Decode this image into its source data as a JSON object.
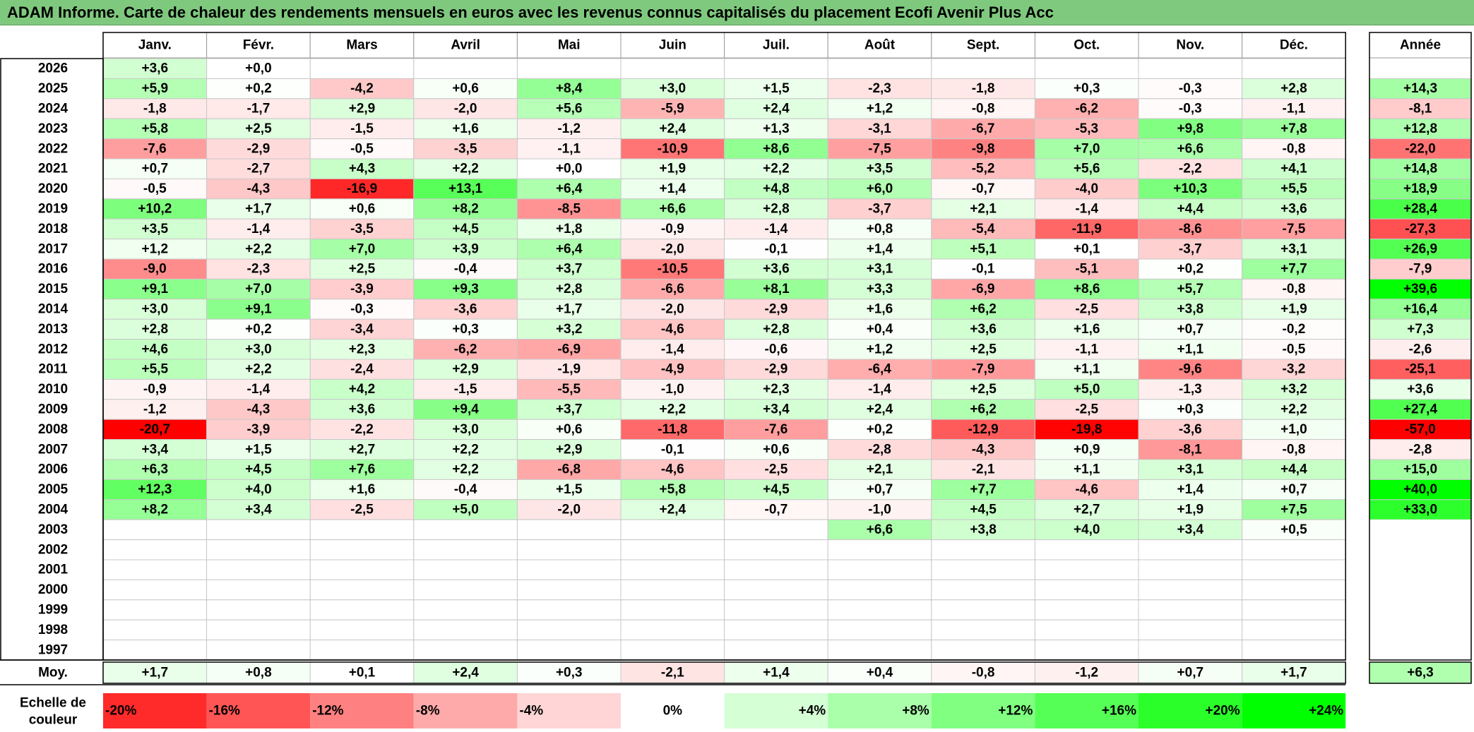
{
  "title": "ADAM Informe. Carte de chaleur des rendements mensuels en euros avec les revenus connus capitalisés du placement Ecofi Avenir Plus Acc",
  "chart_data": {
    "type": "heatmap",
    "months": [
      "Janv.",
      "Févr.",
      "Mars",
      "Avril",
      "Mai",
      "Juin",
      "Juil.",
      "Août",
      "Sept.",
      "Oct.",
      "Nov.",
      "Déc."
    ],
    "year_header": "Année",
    "rows": [
      {
        "year": "2026",
        "values": [
          3.6,
          0.0,
          null,
          null,
          null,
          null,
          null,
          null,
          null,
          null,
          null,
          null
        ],
        "annual": null
      },
      {
        "year": "2025",
        "values": [
          5.9,
          0.2,
          -4.2,
          0.6,
          8.4,
          3.0,
          1.5,
          -2.3,
          -1.8,
          0.3,
          -0.3,
          2.8
        ],
        "annual": 14.3
      },
      {
        "year": "2024",
        "values": [
          -1.8,
          -1.7,
          2.9,
          -2.0,
          5.6,
          -5.9,
          2.4,
          1.2,
          -0.8,
          -6.2,
          -0.3,
          -1.1
        ],
        "annual": -8.1
      },
      {
        "year": "2023",
        "values": [
          5.8,
          2.5,
          -1.5,
          1.6,
          -1.2,
          2.4,
          1.3,
          -3.1,
          -6.7,
          -5.3,
          9.8,
          7.8
        ],
        "annual": 12.8
      },
      {
        "year": "2022",
        "values": [
          -7.6,
          -2.9,
          -0.5,
          -3.5,
          -1.1,
          -10.9,
          8.6,
          -7.5,
          -9.8,
          7.0,
          6.6,
          -0.8
        ],
        "annual": -22.0
      },
      {
        "year": "2021",
        "values": [
          0.7,
          -2.7,
          4.3,
          2.2,
          0.0,
          1.9,
          2.2,
          3.5,
          -5.2,
          5.6,
          -2.2,
          4.1
        ],
        "annual": 14.8
      },
      {
        "year": "2020",
        "values": [
          -0.5,
          -4.3,
          -16.9,
          13.1,
          6.4,
          1.4,
          4.8,
          6.0,
          -0.7,
          -4.0,
          10.3,
          5.5
        ],
        "annual": 18.9
      },
      {
        "year": "2019",
        "values": [
          10.2,
          1.7,
          0.6,
          8.2,
          -8.5,
          6.6,
          2.8,
          -3.7,
          2.1,
          -1.4,
          4.4,
          3.6
        ],
        "annual": 28.4
      },
      {
        "year": "2018",
        "values": [
          3.5,
          -1.4,
          -3.5,
          4.5,
          1.8,
          -0.9,
          -1.4,
          0.8,
          -5.4,
          -11.9,
          -8.6,
          -7.5
        ],
        "annual": -27.3
      },
      {
        "year": "2017",
        "values": [
          1.2,
          2.2,
          7.0,
          3.9,
          6.4,
          -2.0,
          -0.1,
          1.4,
          5.1,
          0.1,
          -3.7,
          3.1
        ],
        "annual": 26.9
      },
      {
        "year": "2016",
        "values": [
          -9.0,
          -2.3,
          2.5,
          -0.4,
          3.7,
          -10.5,
          3.6,
          3.1,
          -0.1,
          -5.1,
          0.2,
          7.7
        ],
        "annual": -7.9
      },
      {
        "year": "2015",
        "values": [
          9.1,
          7.0,
          -3.9,
          9.3,
          2.8,
          -6.6,
          8.1,
          3.3,
          -6.9,
          8.6,
          5.7,
          -0.8
        ],
        "annual": 39.6
      },
      {
        "year": "2014",
        "values": [
          3.0,
          9.1,
          -0.3,
          -3.6,
          1.7,
          -2.0,
          -2.9,
          1.6,
          6.2,
          -2.5,
          3.8,
          1.9
        ],
        "annual": 16.4
      },
      {
        "year": "2013",
        "values": [
          2.8,
          0.2,
          -3.4,
          0.3,
          3.2,
          -4.6,
          2.8,
          0.4,
          3.6,
          1.6,
          0.7,
          -0.2
        ],
        "annual": 7.3
      },
      {
        "year": "2012",
        "values": [
          4.6,
          3.0,
          2.3,
          -6.2,
          -6.9,
          -1.4,
          -0.6,
          1.2,
          2.5,
          -1.1,
          1.1,
          -0.5
        ],
        "annual": -2.6
      },
      {
        "year": "2011",
        "values": [
          5.5,
          2.2,
          -2.4,
          2.9,
          -1.9,
          -4.9,
          -2.9,
          -6.4,
          -7.9,
          1.1,
          -9.6,
          -3.2
        ],
        "annual": -25.1
      },
      {
        "year": "2010",
        "values": [
          -0.9,
          -1.4,
          4.2,
          -1.5,
          -5.5,
          -1.0,
          2.3,
          -1.4,
          2.5,
          5.0,
          -1.3,
          3.2
        ],
        "annual": 3.6
      },
      {
        "year": "2009",
        "values": [
          -1.2,
          -4.3,
          3.6,
          9.4,
          3.7,
          2.2,
          3.4,
          2.4,
          6.2,
          -2.5,
          0.3,
          2.2
        ],
        "annual": 27.4
      },
      {
        "year": "2008",
        "values": [
          -20.7,
          -3.9,
          -2.2,
          3.0,
          0.6,
          -11.8,
          -7.6,
          0.2,
          -12.9,
          -19.8,
          -3.6,
          1.0
        ],
        "annual": -57.0
      },
      {
        "year": "2007",
        "values": [
          3.4,
          1.5,
          2.7,
          2.2,
          2.9,
          -0.1,
          0.6,
          -2.8,
          -4.3,
          0.9,
          -8.1,
          -0.8
        ],
        "annual": -2.8
      },
      {
        "year": "2006",
        "values": [
          6.3,
          4.5,
          7.6,
          2.2,
          -6.8,
          -4.6,
          -2.5,
          2.1,
          -2.1,
          1.1,
          3.1,
          4.4
        ],
        "annual": 15.0
      },
      {
        "year": "2005",
        "values": [
          12.3,
          4.0,
          1.6,
          -0.4,
          1.5,
          5.8,
          4.5,
          0.7,
          7.7,
          -4.6,
          1.4,
          0.7
        ],
        "annual": 40.0
      },
      {
        "year": "2004",
        "values": [
          8.2,
          3.4,
          -2.5,
          5.0,
          -2.0,
          2.4,
          -0.7,
          -1.0,
          4.5,
          2.7,
          1.9,
          7.5
        ],
        "annual": 33.0
      },
      {
        "year": "2003",
        "values": [
          null,
          null,
          null,
          null,
          null,
          null,
          null,
          6.6,
          3.8,
          4.0,
          3.4,
          0.5
        ],
        "annual": null
      },
      {
        "year": "2002",
        "values": [
          null,
          null,
          null,
          null,
          null,
          null,
          null,
          null,
          null,
          null,
          null,
          null
        ],
        "annual": null
      },
      {
        "year": "2001",
        "values": [
          null,
          null,
          null,
          null,
          null,
          null,
          null,
          null,
          null,
          null,
          null,
          null
        ],
        "annual": null
      },
      {
        "year": "2000",
        "values": [
          null,
          null,
          null,
          null,
          null,
          null,
          null,
          null,
          null,
          null,
          null,
          null
        ],
        "annual": null
      },
      {
        "year": "1999",
        "values": [
          null,
          null,
          null,
          null,
          null,
          null,
          null,
          null,
          null,
          null,
          null,
          null
        ],
        "annual": null
      },
      {
        "year": "1998",
        "values": [
          null,
          null,
          null,
          null,
          null,
          null,
          null,
          null,
          null,
          null,
          null,
          null
        ],
        "annual": null
      },
      {
        "year": "1997",
        "values": [
          null,
          null,
          null,
          null,
          null,
          null,
          null,
          null,
          null,
          null,
          null,
          null
        ],
        "annual": null
      }
    ],
    "average": {
      "label": "Moy.",
      "values": [
        1.7,
        0.8,
        0.1,
        2.4,
        0.3,
        -2.1,
        1.4,
        0.4,
        -0.8,
        -1.2,
        0.7,
        1.7
      ],
      "annual": 6.3
    },
    "scale": {
      "label_line1": "Echelle de",
      "label_line2": "couleur",
      "steps": [
        {
          "value": -20,
          "label": "-20%"
        },
        {
          "value": -16,
          "label": "-16%"
        },
        {
          "value": -12,
          "label": "-12%"
        },
        {
          "value": -8,
          "label": "-8%"
        },
        {
          "value": -4,
          "label": "-4%"
        },
        {
          "value": 0,
          "label": "0%"
        },
        {
          "value": 4,
          "label": "+4%"
        },
        {
          "value": 8,
          "label": "+8%"
        },
        {
          "value": 12,
          "label": "+12%"
        },
        {
          "value": 16,
          "label": "+16%"
        },
        {
          "value": 20,
          "label": "+20%"
        },
        {
          "value": 24,
          "label": "+24%"
        }
      ]
    },
    "colors": {
      "negative_max": "#ff0000",
      "neutral": "#ffffff",
      "positive_max": "#00ff00",
      "title_bg": "#7fc97f"
    }
  }
}
